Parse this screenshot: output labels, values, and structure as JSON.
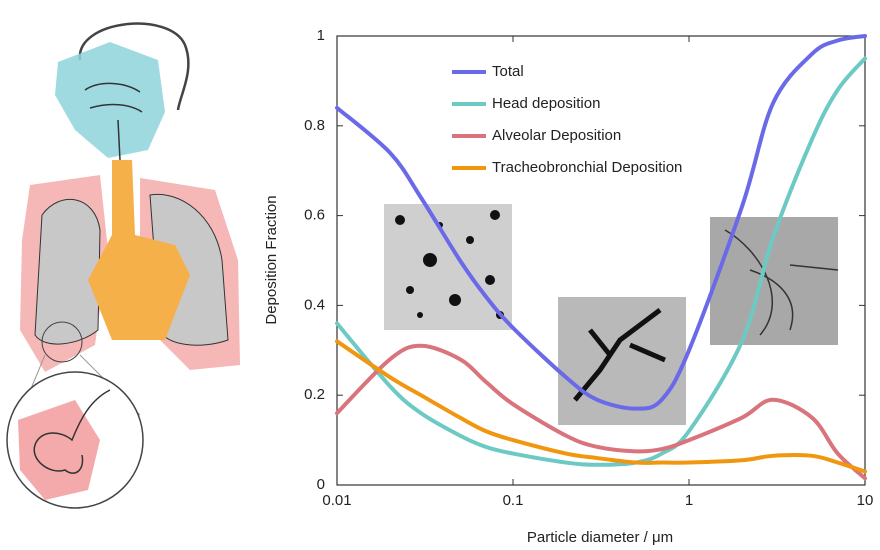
{
  "chart_data": {
    "type": "line",
    "x_label": "Particle diameter / μm",
    "y_label": "Deposition Fraction",
    "xscale": "log",
    "xlim": [
      0.01,
      10
    ],
    "ylim": [
      0,
      1
    ],
    "xticks": [
      0.01,
      0.1,
      1,
      10
    ],
    "yticks": [
      0,
      0.2,
      0.4,
      0.6,
      0.8,
      1
    ],
    "x": [
      0.01,
      0.02,
      0.03,
      0.05,
      0.07,
      0.1,
      0.2,
      0.3,
      0.5,
      0.7,
      1,
      2,
      3,
      5,
      7,
      10
    ],
    "series": [
      {
        "name": "Total",
        "color": "#6a6ae8",
        "values": [
          0.84,
          0.74,
          0.64,
          0.5,
          0.42,
          0.35,
          0.24,
          0.19,
          0.17,
          0.19,
          0.3,
          0.62,
          0.85,
          0.96,
          0.99,
          1.0
        ]
      },
      {
        "name": "Head deposition",
        "color": "#6cc9c4",
        "values": [
          0.36,
          0.22,
          0.16,
          0.11,
          0.085,
          0.07,
          0.05,
          0.045,
          0.05,
          0.07,
          0.12,
          0.32,
          0.55,
          0.77,
          0.88,
          0.95
        ]
      },
      {
        "name": "Alveolar Deposition",
        "color": "#d9747c",
        "values": [
          0.16,
          0.28,
          0.31,
          0.28,
          0.23,
          0.18,
          0.11,
          0.085,
          0.075,
          0.08,
          0.1,
          0.15,
          0.19,
          0.15,
          0.07,
          0.015
        ]
      },
      {
        "name": "Tracheobronchial Deposition",
        "color": "#f0960f",
        "values": [
          0.32,
          0.24,
          0.2,
          0.15,
          0.12,
          0.1,
          0.07,
          0.06,
          0.05,
          0.05,
          0.05,
          0.055,
          0.065,
          0.065,
          0.05,
          0.03
        ]
      }
    ]
  }
}
